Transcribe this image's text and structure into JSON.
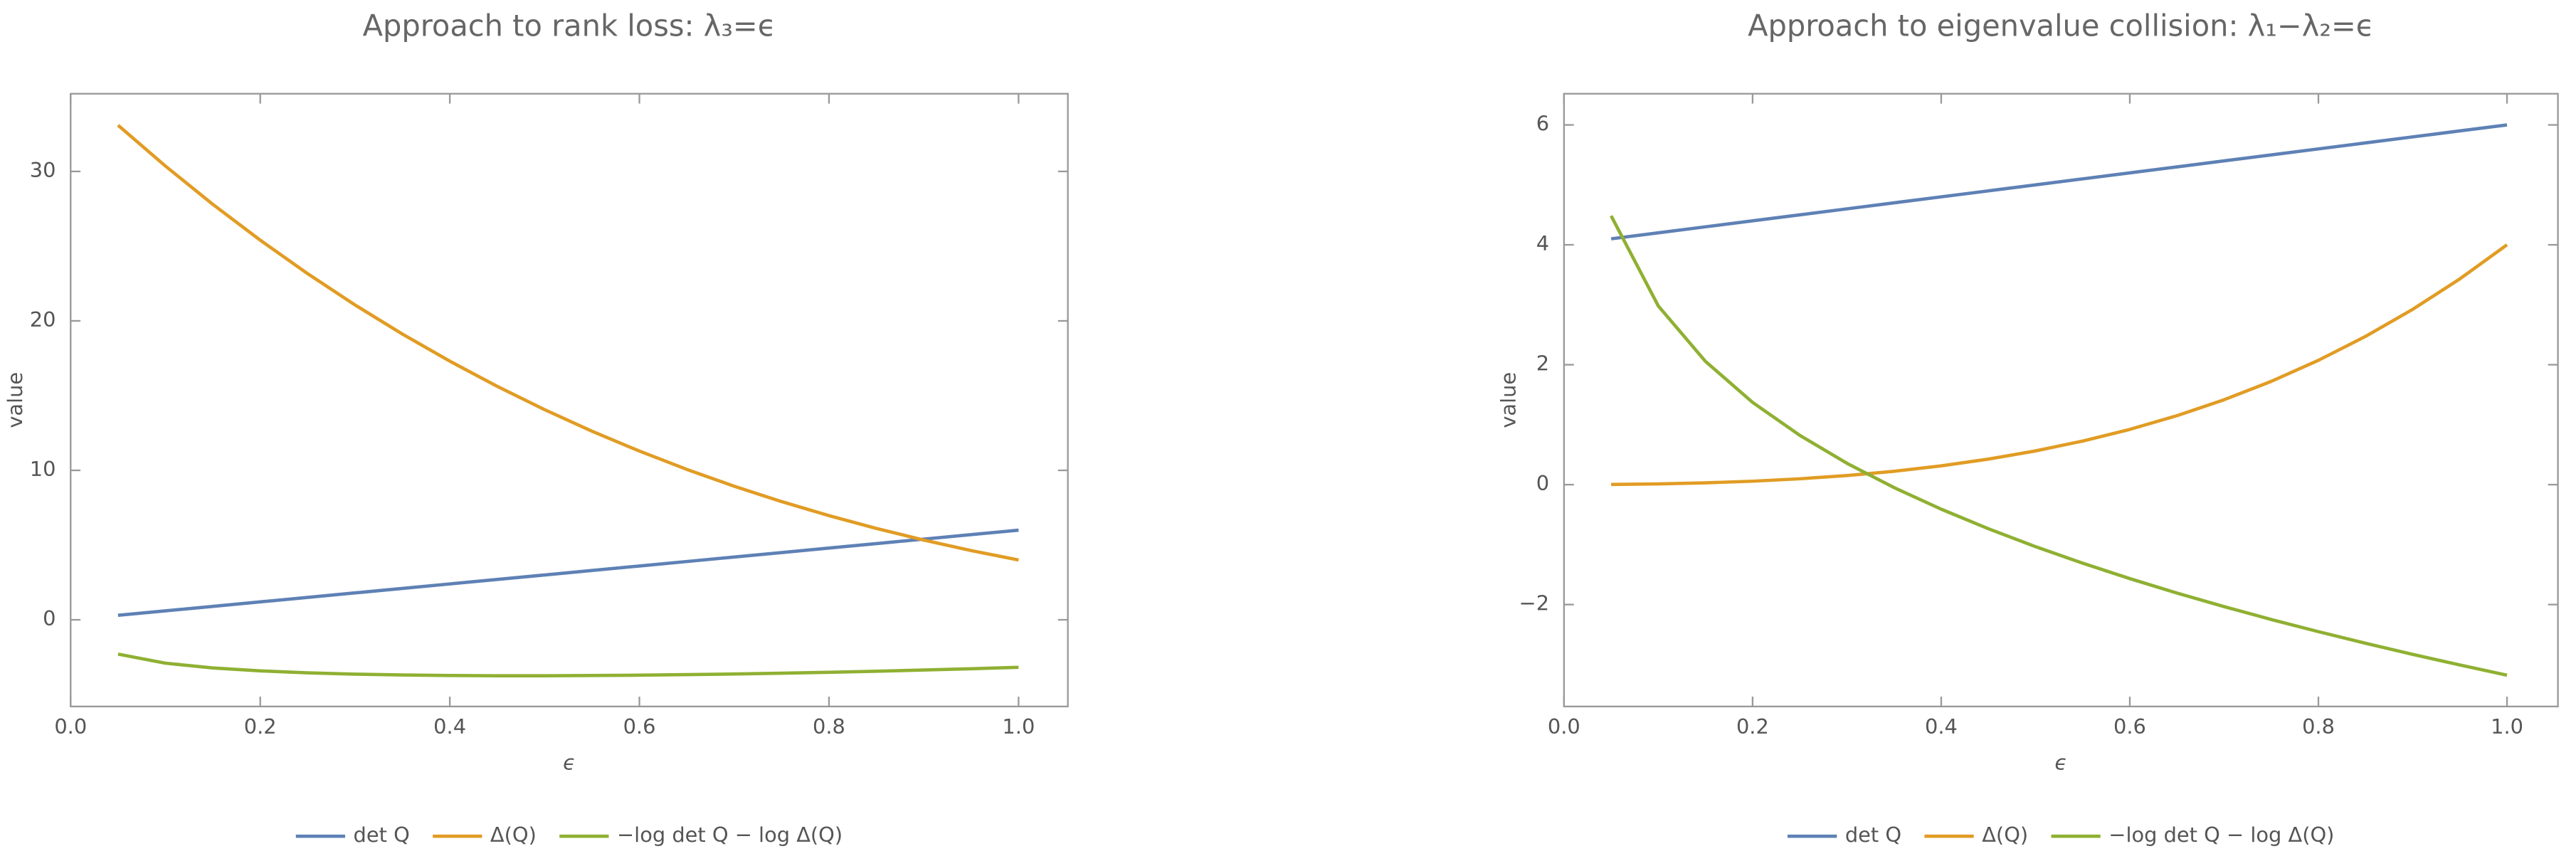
{
  "chart_data": [
    {
      "type": "line",
      "title": "Approach to rank loss: λ₃=ϵ",
      "xlabel": "ϵ",
      "ylabel": "value",
      "x": [
        0.05,
        0.1,
        0.15,
        0.2,
        0.25,
        0.3,
        0.35,
        0.4,
        0.45,
        0.5,
        0.55,
        0.6,
        0.65,
        0.7,
        0.75,
        0.8,
        0.85,
        0.9,
        0.95,
        1.0
      ],
      "series": [
        {
          "name": "det Q",
          "color": "#5e81b5",
          "values": [
            0.3,
            0.6,
            0.9,
            1.2,
            1.5,
            1.8,
            2.1,
            2.4,
            2.7,
            3.0,
            3.3,
            3.6,
            3.9,
            4.2,
            4.5,
            4.8,
            5.1,
            5.4,
            5.7,
            6.0
          ]
        },
        {
          "name": "Δ(Q)",
          "color": "#e19c24",
          "values": [
            33.091,
            30.36,
            27.799,
            25.402,
            23.16,
            21.068,
            19.119,
            17.306,
            15.622,
            14.063,
            12.62,
            11.29,
            10.065,
            8.94,
            7.91,
            6.97,
            6.113,
            5.336,
            4.633,
            4.0
          ]
        },
        {
          "name": "−log det Q − log Δ(Q)",
          "color": "#8fb032",
          "values": [
            -2.295,
            -2.902,
            -3.22,
            -3.417,
            -3.547,
            -3.636,
            -3.693,
            -3.726,
            -3.742,
            -3.743,
            -3.729,
            -3.705,
            -3.67,
            -3.626,
            -3.572,
            -3.511,
            -3.439,
            -3.36,
            -3.273,
            -3.178
          ]
        }
      ],
      "xlim": [
        0,
        1.052
      ],
      "ylim": [
        -5.8,
        35.2
      ],
      "xticks": [
        {
          "value": 0,
          "label": "0.0"
        },
        0.2,
        0.4,
        0.6,
        0.8,
        {
          "value": 1,
          "label": "1.0"
        }
      ],
      "yticks": [
        0,
        10,
        20,
        30
      ],
      "grid": false,
      "legend": "bottom"
    },
    {
      "type": "line",
      "title": "Approach to eigenvalue collision: λ₁−λ₂=ϵ",
      "xlabel": "ϵ",
      "ylabel": "value",
      "x": [
        0.05,
        0.1,
        0.15,
        0.2,
        0.25,
        0.3,
        0.35,
        0.4,
        0.45,
        0.5,
        0.55,
        0.6,
        0.65,
        0.7,
        0.75,
        0.8,
        0.85,
        0.9,
        0.95,
        1.0
      ],
      "series": [
        {
          "name": "det Q",
          "color": "#5e81b5",
          "values": [
            4.1,
            4.2,
            4.3,
            4.4,
            4.5,
            4.6,
            4.7,
            4.8,
            4.9,
            5.0,
            5.1,
            5.2,
            5.3,
            5.4,
            5.5,
            5.6,
            5.7,
            5.8,
            5.9,
            6.0
          ]
        },
        {
          "name": "Δ(Q)",
          "color": "#e19c24",
          "values": [
            0.002756,
            0.0121,
            0.02976,
            0.0576,
            0.09766,
            0.1521,
            0.2233,
            0.3136,
            0.4258,
            0.5625,
            0.7268,
            0.9216,
            1.1503,
            1.4161,
            1.7227,
            2.0736,
            2.4728,
            2.9241,
            3.4318,
            4.0
          ]
        },
        {
          "name": "−log det Q − log Δ(Q)",
          "color": "#8fb032",
          "values": [
            4.483,
            2.98,
            2.056,
            1.372,
            0.823,
            0.357,
            -0.049,
            -0.409,
            -0.735,
            -1.034,
            -1.31,
            -1.567,
            -1.808,
            -2.034,
            -2.249,
            -2.452,
            -2.645,
            -2.831,
            -3.008,
            -3.178
          ]
        }
      ],
      "xlim": [
        0,
        1.054
      ],
      "ylim": [
        -3.7,
        6.52
      ],
      "xticks": [
        {
          "value": 0,
          "label": "0.0"
        },
        0.2,
        0.4,
        0.6,
        0.8,
        {
          "value": 1,
          "label": "1.0"
        }
      ],
      "yticks": [
        {
          "value": -2,
          "label": "−2"
        },
        0,
        2,
        4,
        6
      ],
      "grid": false,
      "legend": "bottom"
    }
  ]
}
